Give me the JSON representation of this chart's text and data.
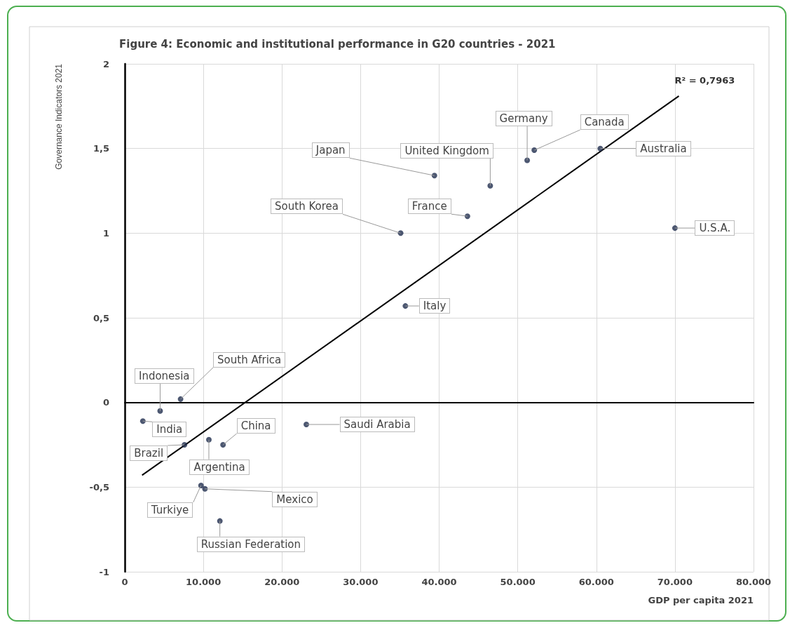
{
  "chart_data": {
    "type": "scatter",
    "title": "Figure 4: Economic and institutional performance in G20 countries - 2021",
    "xlabel": "GDP per capita 2021",
    "ylabel": "Governance Indicators 2021",
    "series": [
      {
        "color": "#1f2d4d",
        "x": [
          39400,
          46500,
          51200,
          52100,
          60500,
          35100,
          43600,
          70000,
          35700,
          7100,
          4500,
          2300,
          7600,
          10700,
          12500,
          23100,
          9700,
          10200,
          12100
        ],
        "values": [
          1.34,
          1.28,
          1.43,
          1.49,
          1.5,
          1.0,
          1.1,
          1.03,
          0.57,
          0.02,
          -0.05,
          -0.11,
          -0.25,
          -0.22,
          -0.25,
          -0.13,
          -0.49,
          -0.51,
          -0.7
        ]
      },
      {
        "type": "line",
        "marker": "none",
        "color": "#000000",
        "x": [
          2200,
          70500
        ],
        "values": [
          -0.43,
          1.81
        ]
      }
    ],
    "annotations": [
      {
        "text": "Japan",
        "x": 39400,
        "y": 1.34
      },
      {
        "text": "United Kingdom",
        "x": 46500,
        "y": 1.28
      },
      {
        "text": "Germany",
        "x": 51200,
        "y": 1.43
      },
      {
        "text": "Canada",
        "x": 52100,
        "y": 1.49
      },
      {
        "text": "Australia",
        "x": 60500,
        "y": 1.5
      },
      {
        "text": "South Korea",
        "x": 35100,
        "y": 1.0
      },
      {
        "text": "France",
        "x": 43600,
        "y": 1.1
      },
      {
        "text": "U.S.A.",
        "x": 70000,
        "y": 1.03
      },
      {
        "text": "Italy",
        "x": 35700,
        "y": 0.57
      },
      {
        "text": "South Africa",
        "x": 7100,
        "y": 0.02
      },
      {
        "text": "Indonesia",
        "x": 4500,
        "y": -0.05
      },
      {
        "text": "India",
        "x": 2300,
        "y": -0.11
      },
      {
        "text": "Brazil",
        "x": 7600,
        "y": -0.25
      },
      {
        "text": "Argentina",
        "x": 10700,
        "y": -0.22
      },
      {
        "text": "China",
        "x": 12500,
        "y": -0.25
      },
      {
        "text": "Saudi Arabia",
        "x": 23100,
        "y": -0.13
      },
      {
        "text": "Turkiye",
        "x": 9700,
        "y": -0.49
      },
      {
        "text": "Mexico",
        "x": 10200,
        "y": -0.51
      },
      {
        "text": "Russian Federation",
        "x": 12100,
        "y": -0.7
      },
      {
        "text": "R² = 0,7963",
        "x": 70500,
        "y": 1.81
      }
    ],
    "xlim": [
      0,
      80000
    ],
    "xticks": [
      0,
      {
        "value": 10000,
        "label": "10.000"
      },
      {
        "value": 20000,
        "label": "20.000"
      },
      {
        "value": 30000,
        "label": "30.000"
      },
      {
        "value": 40000,
        "label": "40.000"
      },
      {
        "value": 50000,
        "label": "50.000"
      },
      {
        "value": 60000,
        "label": "60.000"
      },
      {
        "value": 70000,
        "label": "70.000"
      },
      {
        "value": 80000,
        "label": "80.000"
      }
    ],
    "ylim": [
      -1,
      2
    ],
    "yticks": [
      -1,
      {
        "value": -0.5,
        "label": "-0,5"
      },
      0,
      {
        "value": 0.5,
        "label": "0,5"
      },
      1,
      {
        "value": 1.5,
        "label": "1,5"
      },
      2
    ],
    "grid": true,
    "marker": "circle",
    "line_style": "solid"
  }
}
